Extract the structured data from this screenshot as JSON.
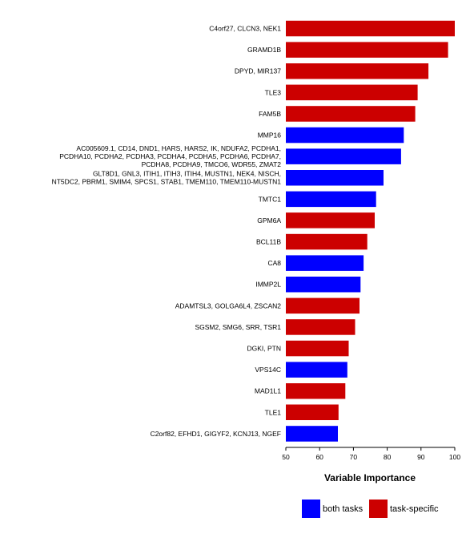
{
  "chart_data": {
    "type": "bar",
    "orientation": "horizontal",
    "title": "",
    "xlabel": "Variable Importance",
    "ylabel": "",
    "xlim": [
      50,
      100
    ],
    "xticks": [
      50,
      60,
      70,
      80,
      90,
      100
    ],
    "grid": false,
    "legend_position": "bottom",
    "legend": [
      {
        "key": "both",
        "label": "both tasks",
        "color": "#0000ff"
      },
      {
        "key": "task",
        "label": "task-specific",
        "color": "#cc0000"
      }
    ],
    "bars": [
      {
        "label": [
          "C4orf27, CLCN3, NEK1"
        ],
        "value": 100.0,
        "group": "task"
      },
      {
        "label": [
          "GRAMD1B"
        ],
        "value": 98.0,
        "group": "task"
      },
      {
        "label": [
          "DPYD, MIR137"
        ],
        "value": 92.2,
        "group": "task"
      },
      {
        "label": [
          "TLE3"
        ],
        "value": 89.0,
        "group": "task"
      },
      {
        "label": [
          "FAM5B"
        ],
        "value": 88.3,
        "group": "task"
      },
      {
        "label": [
          "MMP16"
        ],
        "value": 84.9,
        "group": "both"
      },
      {
        "label": [
          "AC005609.1, CD14, DND1, HARS, HARS2, IK, NDUFA2, PCDHA1,",
          "PCDHA10, PCDHA2, PCDHA3, PCDHA4, PCDHA5, PCDHA6, PCDHA7,",
          "PCDHA8, PCDHA9, TMCO6, WDR55, ZMAT2"
        ],
        "value": 84.1,
        "group": "both"
      },
      {
        "label": [
          "GLT8D1, GNL3, ITIH1, ITIH3, ITIH4, MUSTN1, NEK4, NISCH,",
          "NT5DC2, PBRM1, SMIM4, SPCS1, STAB1, TMEM110, TMEM110-MUSTN1"
        ],
        "value": 78.9,
        "group": "both"
      },
      {
        "label": [
          "TMTC1"
        ],
        "value": 76.7,
        "group": "both"
      },
      {
        "label": [
          "GPM6A"
        ],
        "value": 76.3,
        "group": "task"
      },
      {
        "label": [
          "BCL11B"
        ],
        "value": 74.1,
        "group": "task"
      },
      {
        "label": [
          "CA8"
        ],
        "value": 73.0,
        "group": "both"
      },
      {
        "label": [
          "IMMP2L"
        ],
        "value": 72.1,
        "group": "both"
      },
      {
        "label": [
          "ADAMTSL3, GOLGA6L4, ZSCAN2"
        ],
        "value": 71.8,
        "group": "task"
      },
      {
        "label": [
          "SGSM2, SMG6, SRR, TSR1"
        ],
        "value": 70.5,
        "group": "task"
      },
      {
        "label": [
          "DGKI, PTN"
        ],
        "value": 68.6,
        "group": "task"
      },
      {
        "label": [
          "VPS14C"
        ],
        "value": 68.2,
        "group": "both"
      },
      {
        "label": [
          "MAD1L1"
        ],
        "value": 67.6,
        "group": "task"
      },
      {
        "label": [
          "TLE1"
        ],
        "value": 65.6,
        "group": "task"
      },
      {
        "label": [
          "C2orf82, EFHD1, GIGYF2, KCNJ13, NGEF"
        ],
        "value": 65.4,
        "group": "both"
      }
    ]
  }
}
